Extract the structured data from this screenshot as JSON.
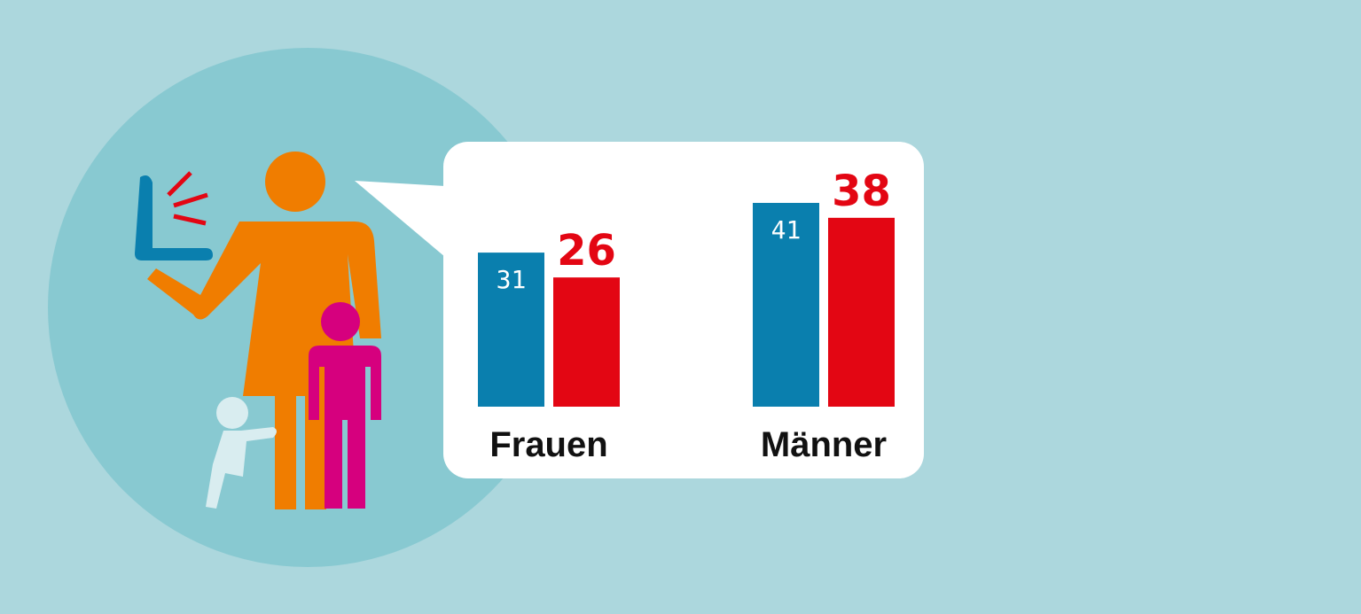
{
  "chart_data": {
    "type": "bar",
    "categories": [
      "Frauen",
      "Männer"
    ],
    "series": [
      {
        "color": "#0a7fae",
        "values": [
          31,
          41
        ]
      },
      {
        "color": "#e30613",
        "values": [
          26,
          38
        ]
      }
    ]
  }
}
